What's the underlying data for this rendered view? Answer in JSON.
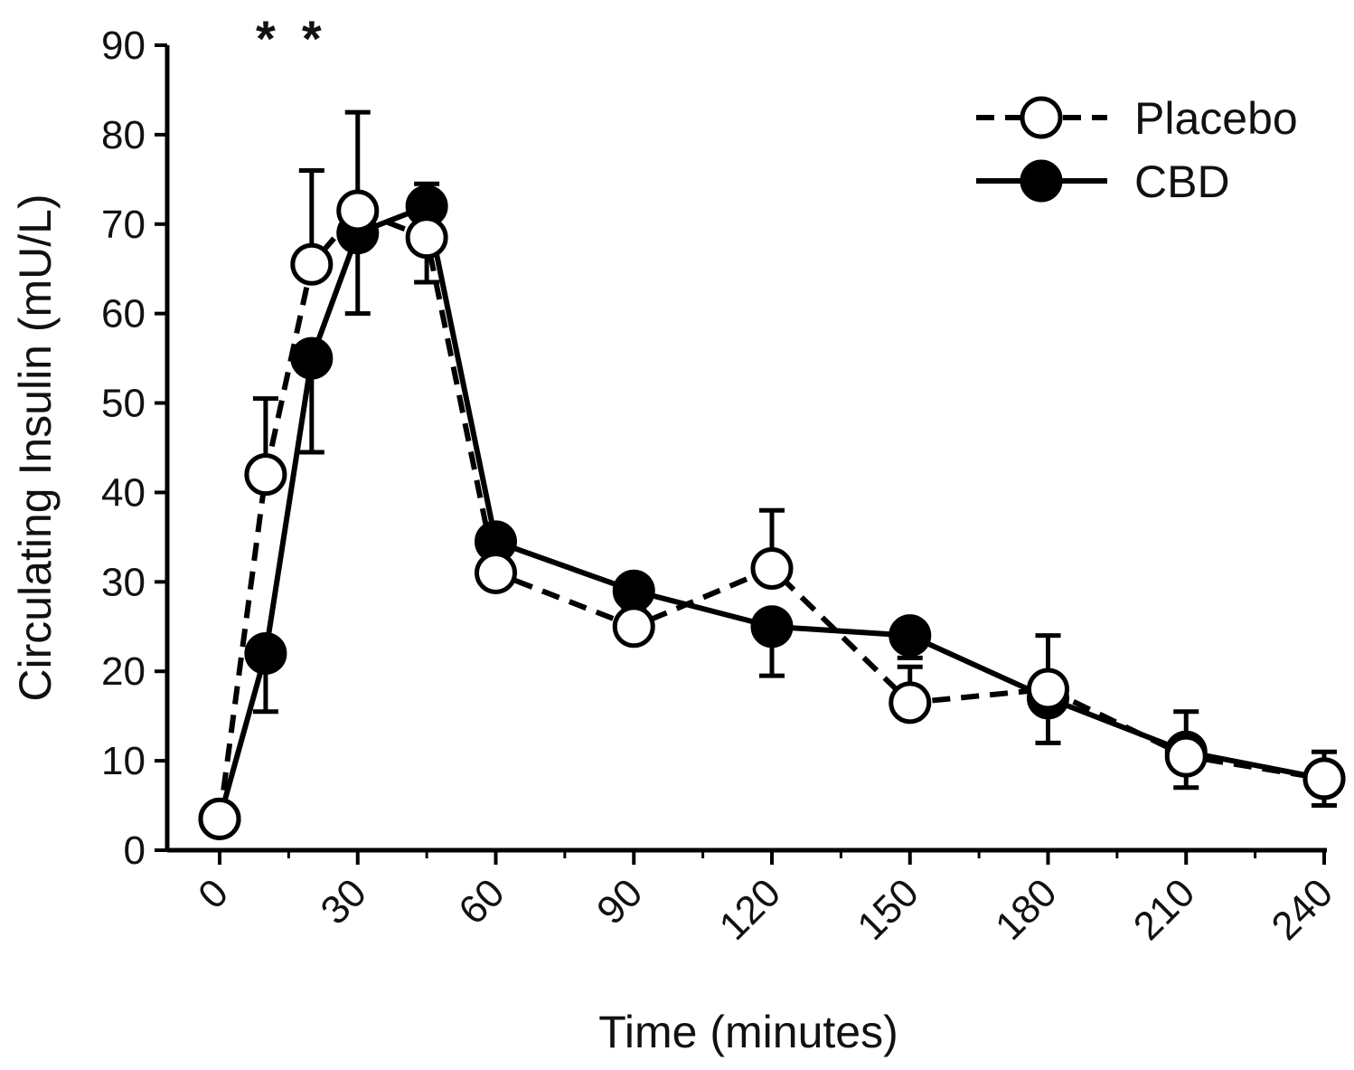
{
  "chart_data": {
    "type": "line",
    "xlabel": "Time (minutes)",
    "ylabel": "Circulating Insulin (mU/L)",
    "xlim": [
      0,
      240
    ],
    "ylim": [
      0,
      90
    ],
    "x_ticks": [
      0,
      30,
      60,
      90,
      120,
      150,
      180,
      210,
      240
    ],
    "y_ticks": [
      0,
      10,
      20,
      30,
      40,
      50,
      60,
      70,
      80,
      90
    ],
    "x_minor_ticks": [
      15,
      45,
      75,
      105,
      135,
      165,
      195,
      225
    ],
    "grid": false,
    "legend_position": "top-right",
    "series": [
      {
        "name": "Placebo",
        "line_style": "dashed",
        "marker": "open-circle",
        "color": "#000000",
        "x": [
          0,
          10,
          20,
          30,
          45,
          60,
          90,
          120,
          150,
          180,
          210,
          240
        ],
        "y": [
          3.5,
          42,
          65.5,
          71.5,
          68.5,
          31,
          25,
          31.5,
          16.5,
          18,
          10.5,
          8
        ],
        "error": [
          0,
          8.5,
          10.5,
          11,
          6,
          3.5,
          3,
          6.5,
          4,
          6,
          5,
          3
        ]
      },
      {
        "name": "CBD",
        "line_style": "solid",
        "marker": "filled-circle",
        "color": "#000000",
        "x": [
          0,
          10,
          20,
          30,
          45,
          60,
          90,
          120,
          150,
          180,
          210,
          240
        ],
        "y": [
          3.5,
          22,
          55,
          69,
          72,
          34.5,
          29,
          25,
          24,
          17,
          11,
          8
        ],
        "error": [
          0,
          6.5,
          10.5,
          9,
          8.5,
          4,
          2,
          5.5,
          2.5,
          5,
          4,
          3
        ]
      }
    ],
    "annotations": [
      {
        "text": "*",
        "x": 10
      },
      {
        "text": "*",
        "x": 20
      }
    ]
  }
}
